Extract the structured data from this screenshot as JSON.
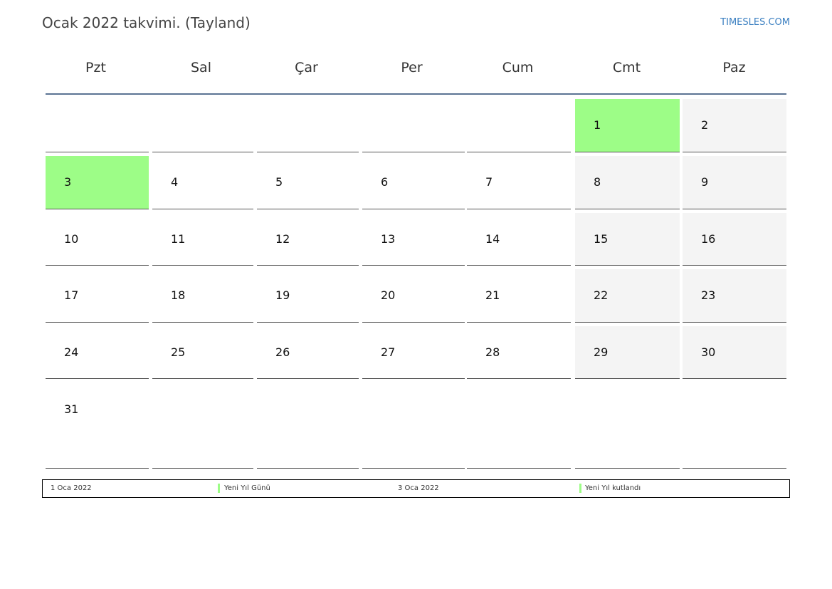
{
  "header": {
    "title": "Ocak 2022 takvimi. (Tayland)",
    "brand": "TIMESLES.COM"
  },
  "weekdays": [
    "Pzt",
    "Sal",
    "Çar",
    "Per",
    "Cum",
    "Cmt",
    "Paz"
  ],
  "colors": {
    "holiday": "#9dfd87",
    "weekend": "#f4f4f4",
    "rule": "#5b7393",
    "brand": "#3a7fc1"
  },
  "weeks": [
    [
      null,
      null,
      null,
      null,
      null,
      1,
      2
    ],
    [
      3,
      4,
      5,
      6,
      7,
      8,
      9
    ],
    [
      10,
      11,
      12,
      13,
      14,
      15,
      16
    ],
    [
      17,
      18,
      19,
      20,
      21,
      22,
      23
    ],
    [
      24,
      25,
      26,
      27,
      28,
      29,
      30
    ],
    [
      31,
      null,
      null,
      null,
      null,
      null,
      null
    ]
  ],
  "holiday_days": [
    1,
    3
  ],
  "legend": [
    {
      "date": "1 Oca 2022",
      "name": "Yeni Yıl Günü"
    },
    {
      "date": "3 Oca 2022",
      "name": "Yeni Yıl kutlandı"
    }
  ]
}
